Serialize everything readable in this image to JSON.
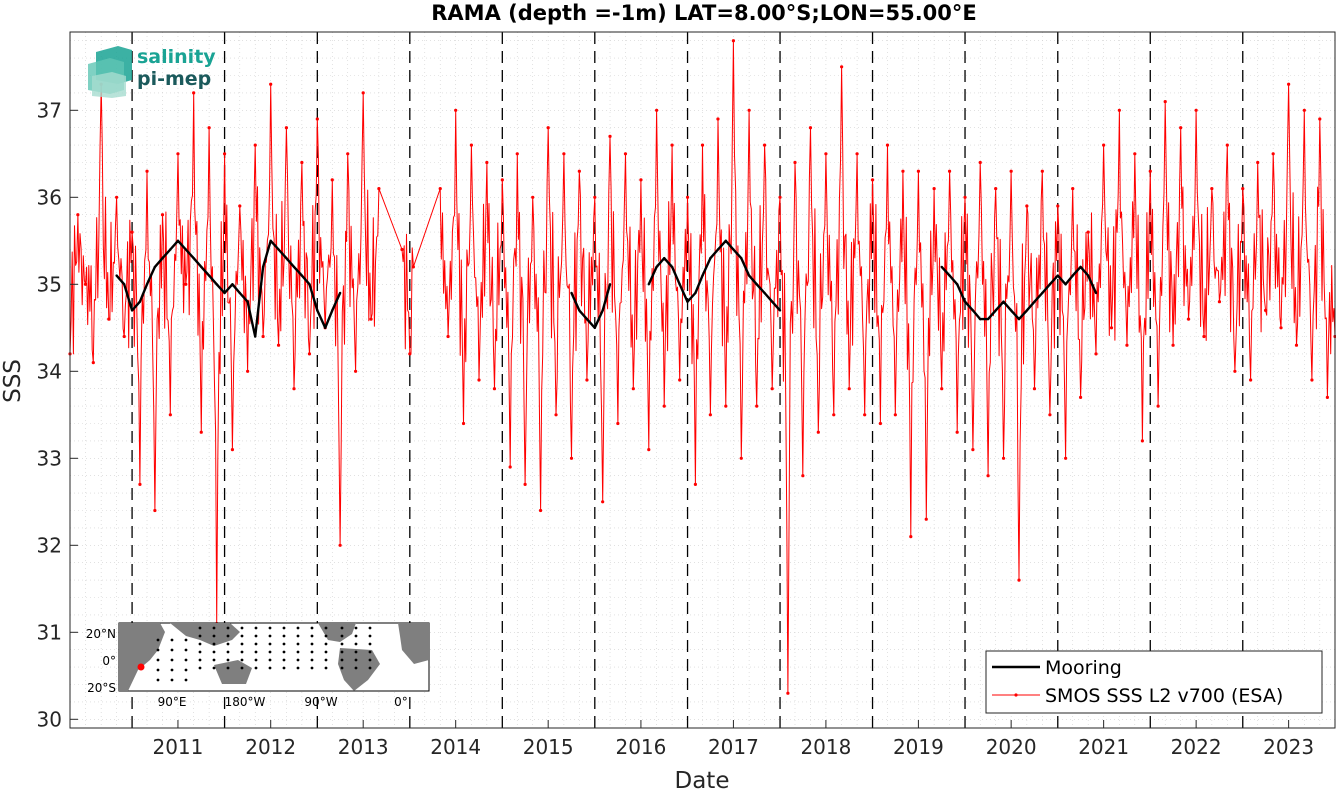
{
  "logo": {
    "line1": "salinity",
    "line2": "pi-mep",
    "color1": "#1aa394",
    "color2": "#1b5a5c"
  },
  "inset": {
    "lat_labels": [
      "20°N",
      "0°",
      "20°S"
    ],
    "lon_labels": [
      "90°E",
      "180°W",
      "90°W",
      "0°"
    ],
    "marker_color": "#ff0000"
  },
  "chart_data": {
    "type": "line",
    "title": "RAMA (depth =-1m) LAT=8.00°S;LON=55.00°E",
    "xlabel": "Date",
    "ylabel": "SSS",
    "xlim": [
      "2010-05-01",
      "2023-12-31"
    ],
    "ylim": [
      29.9,
      37.9
    ],
    "x_ticks": [
      "2011",
      "2012",
      "2013",
      "2014",
      "2015",
      "2016",
      "2017",
      "2018",
      "2019",
      "2020",
      "2021",
      "2022",
      "2023"
    ],
    "y_ticks": [
      30,
      31,
      32,
      33,
      34,
      35,
      36,
      37
    ],
    "year_boundary_dashed_lines": true,
    "grid": "dotted minor",
    "legend_position": "bottom-right",
    "series": [
      {
        "name": "Mooring",
        "color": "#000000",
        "style": "solid thick",
        "points": [
          [
            "2010-11-01",
            35.1
          ],
          [
            "2010-12-01",
            35.0
          ],
          [
            "2011-01-01",
            34.7
          ],
          [
            "2011-02-01",
            34.8
          ],
          [
            "2011-03-01",
            35.0
          ],
          [
            "2011-04-01",
            35.2
          ],
          [
            "2011-05-01",
            35.3
          ],
          [
            "2011-06-01",
            35.4
          ],
          [
            "2011-07-01",
            35.5
          ],
          [
            "2011-08-01",
            35.4
          ],
          [
            "2011-09-01",
            35.3
          ],
          [
            "2011-10-01",
            35.2
          ],
          [
            "2011-11-01",
            35.1
          ],
          [
            "2011-12-01",
            35.0
          ],
          [
            "2012-01-01",
            34.9
          ],
          [
            "2012-02-01",
            35.0
          ],
          [
            "2012-03-01",
            34.9
          ],
          [
            "2012-04-01",
            34.8
          ],
          [
            "2012-05-01",
            34.4
          ],
          [
            "2012-06-01",
            35.2
          ],
          [
            "2012-07-01",
            35.5
          ],
          [
            "2012-08-01",
            35.4
          ],
          [
            "2012-09-01",
            35.3
          ],
          [
            "2012-10-01",
            35.2
          ],
          [
            "2012-11-01",
            35.1
          ],
          [
            "2012-12-01",
            35.0
          ],
          [
            "2013-01-01",
            34.7
          ],
          [
            "2013-02-01",
            34.5
          ],
          [
            "2013-03-01",
            34.7
          ],
          [
            "2013-04-01",
            34.9
          ],
          [
            "2015-10-01",
            34.9
          ],
          [
            "2015-11-01",
            34.7
          ],
          [
            "2015-12-01",
            34.6
          ],
          [
            "2016-01-01",
            34.5
          ],
          [
            "2016-02-01",
            34.7
          ],
          [
            "2016-03-01",
            35.0
          ],
          [
            "2016-08-01",
            35.0
          ],
          [
            "2016-09-01",
            35.2
          ],
          [
            "2016-10-01",
            35.3
          ],
          [
            "2016-11-01",
            35.2
          ],
          [
            "2016-12-01",
            35.0
          ],
          [
            "2017-01-01",
            34.8
          ],
          [
            "2017-02-01",
            34.9
          ],
          [
            "2017-03-01",
            35.1
          ],
          [
            "2017-04-01",
            35.3
          ],
          [
            "2017-05-01",
            35.4
          ],
          [
            "2017-06-01",
            35.5
          ],
          [
            "2017-07-01",
            35.4
          ],
          [
            "2017-08-01",
            35.3
          ],
          [
            "2017-09-01",
            35.1
          ],
          [
            "2017-10-01",
            35.0
          ],
          [
            "2017-11-01",
            34.9
          ],
          [
            "2017-12-01",
            34.8
          ],
          [
            "2018-01-01",
            34.7
          ],
          [
            "2019-10-01",
            35.2
          ],
          [
            "2019-11-01",
            35.1
          ],
          [
            "2019-12-01",
            35.0
          ],
          [
            "2020-01-01",
            34.8
          ],
          [
            "2020-02-01",
            34.7
          ],
          [
            "2020-03-01",
            34.6
          ],
          [
            "2020-04-01",
            34.6
          ],
          [
            "2020-05-01",
            34.7
          ],
          [
            "2020-06-01",
            34.8
          ],
          [
            "2020-07-01",
            34.7
          ],
          [
            "2020-08-01",
            34.6
          ],
          [
            "2020-09-01",
            34.7
          ],
          [
            "2020-10-01",
            34.8
          ],
          [
            "2020-11-01",
            34.9
          ],
          [
            "2020-12-01",
            35.0
          ],
          [
            "2021-01-01",
            35.1
          ],
          [
            "2021-02-01",
            35.0
          ],
          [
            "2021-03-01",
            35.1
          ],
          [
            "2021-04-01",
            35.2
          ],
          [
            "2021-05-01",
            35.1
          ],
          [
            "2021-06-01",
            34.9
          ]
        ]
      },
      {
        "name": "SMOS SSS L2 v700 (ESA)",
        "color": "#ff0000",
        "style": "thin line with small markers",
        "points": [
          [
            "2010-05-01",
            34.2
          ],
          [
            "2010-06-01",
            35.8
          ],
          [
            "2010-07-01",
            35.0
          ],
          [
            "2010-08-01",
            34.1
          ],
          [
            "2010-09-01",
            37.3
          ],
          [
            "2010-10-01",
            34.6
          ],
          [
            "2010-11-01",
            36.0
          ],
          [
            "2010-12-01",
            34.4
          ],
          [
            "2011-01-01",
            35.6
          ],
          [
            "2011-02-01",
            32.7
          ],
          [
            "2011-03-01",
            36.3
          ],
          [
            "2011-04-01",
            32.4
          ],
          [
            "2011-05-01",
            35.8
          ],
          [
            "2011-06-01",
            33.5
          ],
          [
            "2011-07-01",
            36.5
          ],
          [
            "2011-08-01",
            35.0
          ],
          [
            "2011-09-01",
            37.2
          ],
          [
            "2011-10-01",
            33.3
          ],
          [
            "2011-11-01",
            36.8
          ],
          [
            "2011-12-01",
            31.1
          ],
          [
            "2012-01-01",
            36.5
          ],
          [
            "2012-02-01",
            33.1
          ],
          [
            "2012-03-01",
            35.9
          ],
          [
            "2012-04-01",
            34.0
          ],
          [
            "2012-05-01",
            36.6
          ],
          [
            "2012-06-01",
            34.4
          ],
          [
            "2012-07-01",
            37.3
          ],
          [
            "2012-08-01",
            34.3
          ],
          [
            "2012-09-01",
            36.8
          ],
          [
            "2012-10-01",
            33.8
          ],
          [
            "2012-11-01",
            36.4
          ],
          [
            "2012-12-01",
            34.2
          ],
          [
            "2013-01-01",
            36.9
          ],
          [
            "2013-02-01",
            34.5
          ],
          [
            "2013-03-01",
            36.2
          ],
          [
            "2013-04-01",
            32.0
          ],
          [
            "2013-05-01",
            36.5
          ],
          [
            "2013-06-01",
            34.0
          ],
          [
            "2013-07-01",
            37.2
          ],
          [
            "2013-08-01",
            34.6
          ],
          [
            "2013-09-01",
            36.1
          ],
          [
            "2013-12-01",
            35.4
          ],
          [
            "2014-01-01",
            34.2
          ],
          [
            "2014-01-15",
            35.2
          ],
          [
            "2014-05-01",
            36.1
          ],
          [
            "2014-06-01",
            34.4
          ],
          [
            "2014-07-01",
            37.0
          ],
          [
            "2014-08-01",
            33.4
          ],
          [
            "2014-09-01",
            36.6
          ],
          [
            "2014-10-01",
            33.9
          ],
          [
            "2014-11-01",
            36.4
          ],
          [
            "2014-12-01",
            33.8
          ],
          [
            "2015-01-01",
            36.2
          ],
          [
            "2015-02-01",
            32.9
          ],
          [
            "2015-03-01",
            36.5
          ],
          [
            "2015-04-01",
            32.7
          ],
          [
            "2015-05-01",
            36.0
          ],
          [
            "2015-06-01",
            32.4
          ],
          [
            "2015-07-01",
            36.8
          ],
          [
            "2015-08-01",
            33.5
          ],
          [
            "2015-09-01",
            36.5
          ],
          [
            "2015-10-01",
            33.0
          ],
          [
            "2015-11-01",
            36.3
          ],
          [
            "2015-12-01",
            33.9
          ],
          [
            "2016-01-01",
            36.0
          ],
          [
            "2016-02-01",
            32.5
          ],
          [
            "2016-03-01",
            36.7
          ],
          [
            "2016-04-01",
            33.4
          ],
          [
            "2016-05-01",
            36.5
          ],
          [
            "2016-06-01",
            33.8
          ],
          [
            "2016-07-01",
            36.2
          ],
          [
            "2016-08-01",
            33.1
          ],
          [
            "2016-09-01",
            37.0
          ],
          [
            "2016-10-01",
            33.6
          ],
          [
            "2016-11-01",
            36.6
          ],
          [
            "2016-12-01",
            33.9
          ],
          [
            "2017-01-01",
            36.0
          ],
          [
            "2017-02-01",
            32.7
          ],
          [
            "2017-03-01",
            36.6
          ],
          [
            "2017-04-01",
            33.5
          ],
          [
            "2017-05-01",
            36.9
          ],
          [
            "2017-06-01",
            33.6
          ],
          [
            "2017-07-01",
            37.8
          ],
          [
            "2017-08-01",
            33.0
          ],
          [
            "2017-09-01",
            37.0
          ],
          [
            "2017-10-01",
            33.6
          ],
          [
            "2017-11-01",
            36.6
          ],
          [
            "2017-12-01",
            33.8
          ],
          [
            "2018-01-01",
            36.0
          ],
          [
            "2018-02-01",
            30.3
          ],
          [
            "2018-03-01",
            36.4
          ],
          [
            "2018-04-01",
            32.8
          ],
          [
            "2018-05-01",
            36.8
          ],
          [
            "2018-06-01",
            33.3
          ],
          [
            "2018-07-01",
            36.5
          ],
          [
            "2018-08-01",
            33.5
          ],
          [
            "2018-09-01",
            37.5
          ],
          [
            "2018-10-01",
            33.8
          ],
          [
            "2018-11-01",
            36.5
          ],
          [
            "2018-12-01",
            33.5
          ],
          [
            "2019-01-01",
            36.2
          ],
          [
            "2019-02-01",
            33.4
          ],
          [
            "2019-03-01",
            36.6
          ],
          [
            "2019-04-01",
            33.5
          ],
          [
            "2019-05-01",
            36.3
          ],
          [
            "2019-06-01",
            32.1
          ],
          [
            "2019-07-01",
            36.3
          ],
          [
            "2019-08-01",
            32.3
          ],
          [
            "2019-09-01",
            36.1
          ],
          [
            "2019-10-01",
            33.8
          ],
          [
            "2019-11-01",
            36.3
          ],
          [
            "2019-12-01",
            33.3
          ],
          [
            "2020-01-01",
            36.0
          ],
          [
            "2020-02-01",
            33.1
          ],
          [
            "2020-03-01",
            36.4
          ],
          [
            "2020-04-01",
            32.8
          ],
          [
            "2020-05-01",
            36.1
          ],
          [
            "2020-06-01",
            33.0
          ],
          [
            "2020-07-01",
            36.3
          ],
          [
            "2020-08-01",
            31.6
          ],
          [
            "2020-09-01",
            35.9
          ],
          [
            "2020-10-01",
            33.8
          ],
          [
            "2020-11-01",
            36.3
          ],
          [
            "2020-12-01",
            33.5
          ],
          [
            "2021-01-01",
            35.9
          ],
          [
            "2021-02-01",
            33.0
          ],
          [
            "2021-03-01",
            36.1
          ],
          [
            "2021-04-01",
            33.7
          ],
          [
            "2021-05-01",
            35.6
          ],
          [
            "2021-06-01",
            34.2
          ],
          [
            "2021-07-01",
            36.6
          ],
          [
            "2021-08-01",
            34.5
          ],
          [
            "2021-09-01",
            37.0
          ],
          [
            "2021-10-01",
            34.3
          ],
          [
            "2021-11-01",
            36.5
          ],
          [
            "2021-12-01",
            33.2
          ],
          [
            "2022-01-01",
            36.3
          ],
          [
            "2022-02-01",
            33.6
          ],
          [
            "2022-03-01",
            37.1
          ],
          [
            "2022-04-01",
            34.3
          ],
          [
            "2022-05-01",
            36.8
          ],
          [
            "2022-06-01",
            34.6
          ],
          [
            "2022-07-01",
            37.0
          ],
          [
            "2022-08-01",
            34.4
          ],
          [
            "2022-09-01",
            36.1
          ],
          [
            "2022-10-01",
            34.8
          ],
          [
            "2022-11-01",
            36.6
          ],
          [
            "2022-12-01",
            34.0
          ],
          [
            "2023-01-01",
            36.1
          ],
          [
            "2023-02-01",
            33.9
          ],
          [
            "2023-03-01",
            36.4
          ],
          [
            "2023-04-01",
            34.7
          ],
          [
            "2023-05-01",
            36.5
          ],
          [
            "2023-06-01",
            34.5
          ],
          [
            "2023-07-01",
            37.3
          ],
          [
            "2023-08-01",
            34.3
          ],
          [
            "2023-09-01",
            37.0
          ],
          [
            "2023-10-01",
            33.9
          ],
          [
            "2023-11-01",
            36.9
          ],
          [
            "2023-12-01",
            33.7
          ],
          [
            "2023-12-31",
            34.4
          ]
        ]
      }
    ]
  }
}
